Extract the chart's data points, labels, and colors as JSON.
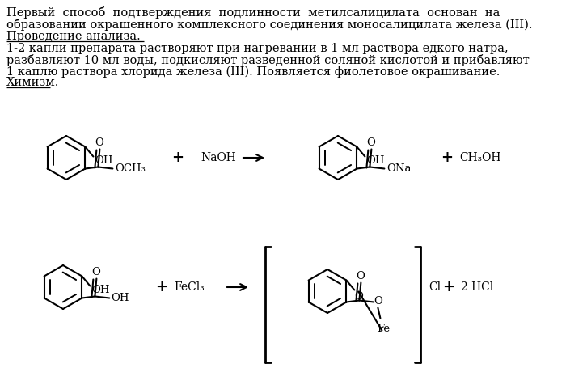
{
  "bg_color": "#ffffff",
  "text_color": "#000000",
  "line1": "Первый  способ  подтверждения  подлинности  метилсалицилата  основан  на",
  "line2": "образовании окрашенного комплексного соединения моносалицилата железа (III).",
  "underline1_text": "Проведение анализа.",
  "body_lines": [
    "1-2 капли препарата растворяют при нагревании в 1 мл раствора едкого натра,",
    "разбавляют 10 мл воды, подкисляют разведенной соляной кислотой и прибавляют",
    "1 каплю раствора хлорида железа (III). Появляется фиолетовое окрашивание."
  ],
  "underline2_text": "Химизм.",
  "font_size": 10.5
}
